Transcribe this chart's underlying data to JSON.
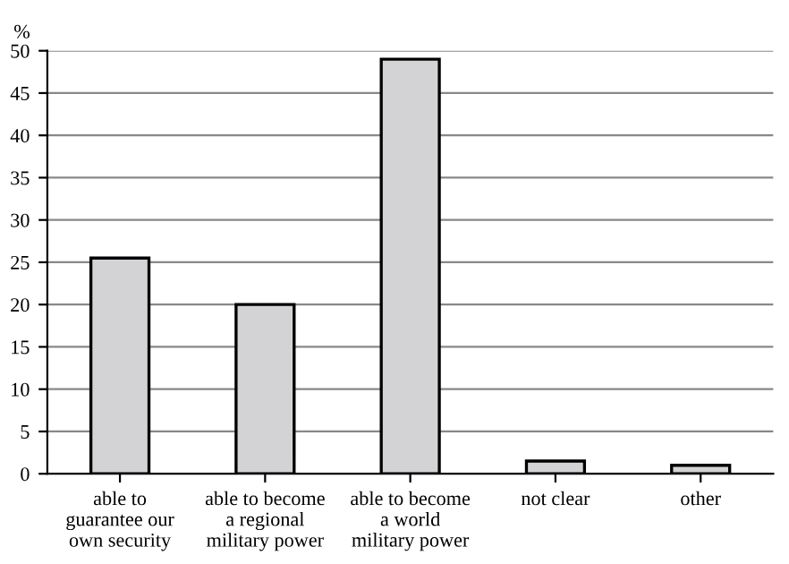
{
  "chart_data": {
    "type": "bar",
    "ylabel": "%",
    "categories": [
      "able to\nguarantee our\nown security",
      "able to become\na regional\nmilitary power",
      "able to become\na world\nmilitary power",
      "not clear",
      "other"
    ],
    "values": [
      25.5,
      20,
      49,
      1.5,
      1
    ],
    "color": "#d3d3d6",
    "ylim": [
      0,
      50
    ],
    "yticks": [
      0,
      5,
      10,
      15,
      20,
      25,
      30,
      35,
      40,
      45,
      50
    ],
    "grid": "y"
  }
}
